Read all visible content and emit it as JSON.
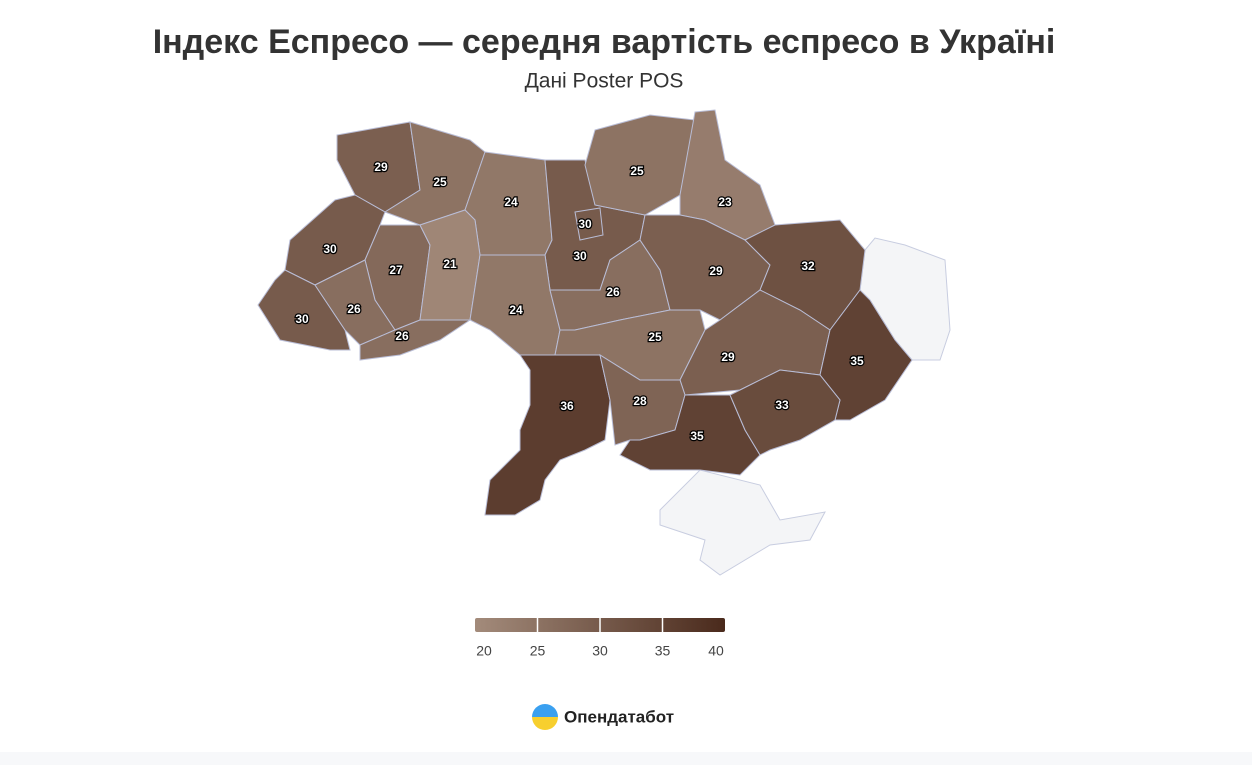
{
  "chart_data": {
    "type": "choropleth",
    "title": "Індекс Еспресо — середня вартість еспресо в Україні",
    "subtitle": "Дані Poster POS",
    "values": [
      29,
      25,
      24,
      30,
      30,
      25,
      23,
      30,
      27,
      21,
      24,
      26,
      29,
      32,
      30,
      26,
      26,
      25,
      29,
      35,
      36,
      28,
      35,
      33
    ],
    "color_range": [
      "#a38b7b",
      "#4a2a1c"
    ],
    "clim": [
      20,
      40
    ],
    "cticks": [
      20,
      25,
      30,
      35,
      40
    ]
  },
  "footer": {
    "brand": "Опендатабот"
  }
}
